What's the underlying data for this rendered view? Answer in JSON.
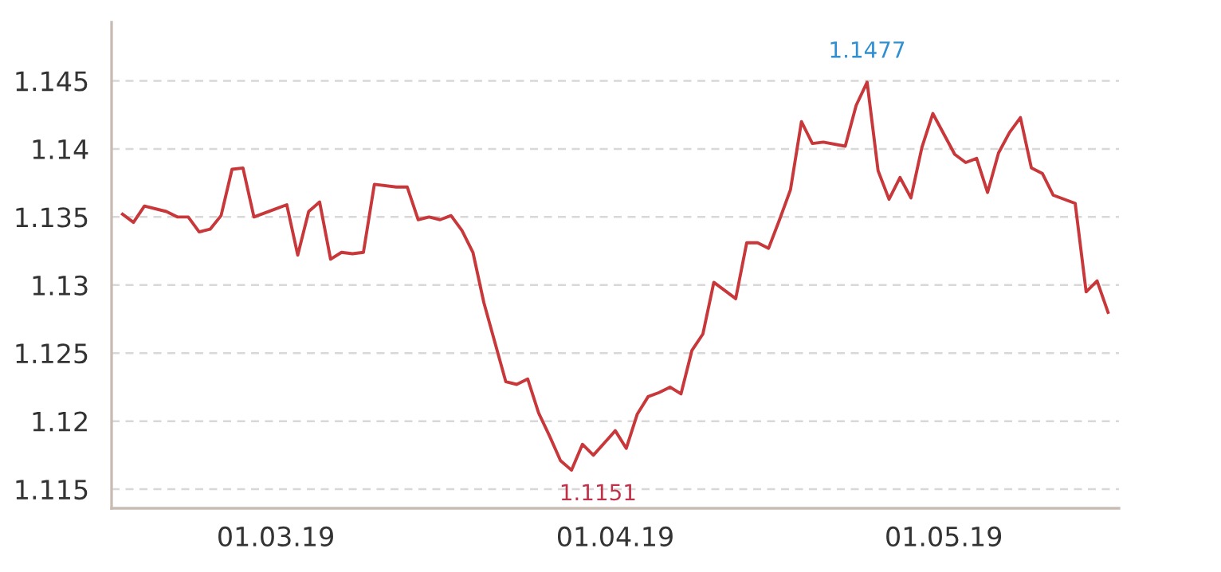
{
  "chart_data": {
    "type": "line",
    "x": [
      "2019-02-15",
      "2019-02-16",
      "2019-02-17",
      "2019-02-19",
      "2019-02-20",
      "2019-02-21",
      "2019-02-22",
      "2019-02-23",
      "2019-02-24",
      "2019-02-25",
      "2019-02-26",
      "2019-02-27",
      "2019-03-01",
      "2019-03-02",
      "2019-03-03",
      "2019-03-04",
      "2019-03-05",
      "2019-03-06",
      "2019-03-07",
      "2019-03-08",
      "2019-03-09",
      "2019-03-10",
      "2019-03-12",
      "2019-03-13",
      "2019-03-14",
      "2019-03-15",
      "2019-03-16",
      "2019-03-17",
      "2019-03-18",
      "2019-03-19",
      "2019-03-20",
      "2019-03-22",
      "2019-03-23",
      "2019-03-24",
      "2019-03-25",
      "2019-03-26",
      "2019-03-27",
      "2019-03-28",
      "2019-03-29",
      "2019-03-30",
      "2019-04-01",
      "2019-04-02",
      "2019-04-03",
      "2019-04-04",
      "2019-04-05",
      "2019-04-06",
      "2019-04-07",
      "2019-04-08",
      "2019-04-09",
      "2019-04-10",
      "2019-04-12",
      "2019-04-13",
      "2019-04-14",
      "2019-04-15",
      "2019-04-16",
      "2019-04-17",
      "2019-04-18",
      "2019-04-19",
      "2019-04-20",
      "2019-04-22",
      "2019-04-23",
      "2019-04-24",
      "2019-04-25",
      "2019-04-26",
      "2019-04-27",
      "2019-04-28",
      "2019-04-29",
      "2019-04-30",
      "2019-05-02",
      "2019-05-03",
      "2019-05-04",
      "2019-05-05",
      "2019-05-06",
      "2019-05-07",
      "2019-05-08",
      "2019-05-09",
      "2019-05-10",
      "2019-05-11",
      "2019-05-13",
      "2019-05-14",
      "2019-05-15",
      "2019-05-16"
    ],
    "series": [
      {
        "color": "#c8383a",
        "values": [
          1.1352,
          1.1346,
          1.1358,
          1.1354,
          1.135,
          1.135,
          1.1339,
          1.1341,
          1.1351,
          1.1385,
          1.1386,
          1.135,
          1.1356,
          1.1359,
          1.1322,
          1.1354,
          1.1361,
          1.1319,
          1.1324,
          1.1323,
          1.1324,
          1.1374,
          1.1372,
          1.1372,
          1.1348,
          1.135,
          1.1348,
          1.1351,
          1.134,
          1.1324,
          1.1287,
          1.1229,
          1.1227,
          1.1231,
          1.1206,
          1.1189,
          1.1171,
          1.1164,
          1.1183,
          1.1175,
          1.1193,
          1.118,
          1.1205,
          1.1218,
          1.1221,
          1.1225,
          1.122,
          1.1252,
          1.1264,
          1.1302,
          1.129,
          1.1331,
          1.1331,
          1.1327,
          1.1348,
          1.137,
          1.142,
          1.1404,
          1.1405,
          1.1402,
          1.1432,
          1.1449,
          1.1384,
          1.1363,
          1.1379,
          1.1364,
          1.1401,
          1.1426,
          1.1396,
          1.139,
          1.1393,
          1.1368,
          1.1397,
          1.1412,
          1.1423,
          1.1386,
          1.1382,
          1.1366,
          1.136,
          1.1295,
          1.1303,
          1.128
        ]
      }
    ],
    "xlim": [
      "2019-02-14",
      "2019-05-17"
    ],
    "xticks": [
      {
        "value": "2019-03-01",
        "label": "01.03.19"
      },
      {
        "value": "2019-04-01",
        "label": "01.04.19"
      },
      {
        "value": "2019-05-01",
        "label": "01.05.19"
      }
    ],
    "ylim": [
      1.1136,
      1.1493
    ],
    "yticks": [
      1.115,
      1.12,
      1.125,
      1.13,
      1.135,
      1.14,
      1.145
    ],
    "grid": "y",
    "marker": "none",
    "line_style": "solid",
    "annotations": [
      "1.1477",
      "1.1151"
    ]
  }
}
